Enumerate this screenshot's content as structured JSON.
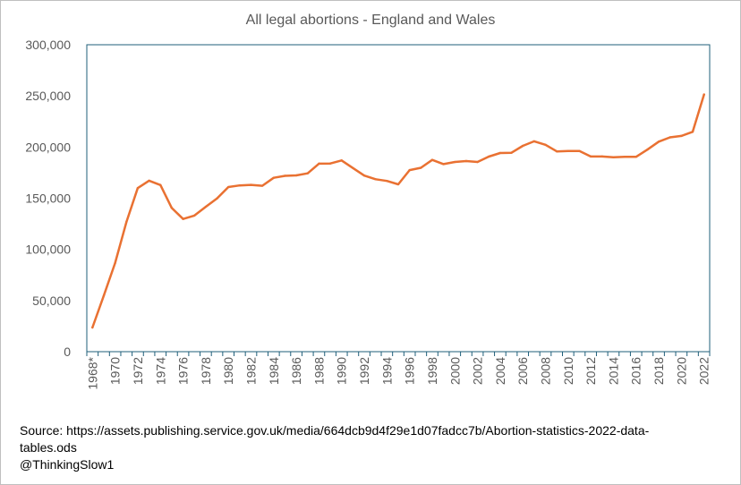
{
  "chart_data": {
    "type": "line",
    "title": "All legal abortions - England and Wales",
    "xlabel": "",
    "ylabel": "",
    "ylim": [
      0,
      300000
    ],
    "yticks": [
      "0",
      "50,000",
      "100,000",
      "150,000",
      "200,000",
      "250,000",
      "300,000"
    ],
    "x": [
      "1968*",
      "1969",
      "1970",
      "1971",
      "1972",
      "1973",
      "1974",
      "1975",
      "1976",
      "1977",
      "1978",
      "1979",
      "1980",
      "1981",
      "1982",
      "1983",
      "1984",
      "1985",
      "1986",
      "1987",
      "1988",
      "1989",
      "1990",
      "1991",
      "1992",
      "1993",
      "1994",
      "1995",
      "1996",
      "1997",
      "1998",
      "1999",
      "2000",
      "2001",
      "2002",
      "2003",
      "2004",
      "2005",
      "2006",
      "2007",
      "2008",
      "2009",
      "2010",
      "2011",
      "2012",
      "2013",
      "2014",
      "2015",
      "2016",
      "2017",
      "2018",
      "2019",
      "2020",
      "2021",
      "2022"
    ],
    "xtick_labels": [
      "1968*",
      "1970",
      "1972",
      "1974",
      "1976",
      "1978",
      "1980",
      "1982",
      "1984",
      "1986",
      "1988",
      "1990",
      "1992",
      "1994",
      "1996",
      "1998",
      "2000",
      "2002",
      "2004",
      "2006",
      "2008",
      "2010",
      "2012",
      "2014",
      "2016",
      "2018",
      "2020",
      "2022"
    ],
    "series": [
      {
        "name": "",
        "color": "#e97132",
        "values": [
          23600,
          54800,
          86600,
          126800,
          159900,
          167100,
          162900,
          140500,
          129700,
          133000,
          141600,
          149700,
          160900,
          162500,
          163000,
          162200,
          169900,
          171900,
          172300,
          174300,
          183800,
          183900,
          186900,
          179500,
          172100,
          168500,
          166900,
          163600,
          177500,
          179700,
          187400,
          183300,
          185400,
          186300,
          185400,
          190700,
          194200,
          194400,
          201200,
          205600,
          202200,
          195700,
          196100,
          196100,
          190800,
          190800,
          190100,
          190400,
          190400,
          197500,
          205300,
          209500,
          210900,
          214900,
          251400
        ]
      }
    ],
    "grid": false,
    "legend": "none",
    "plot_border_color": "#1f5f7a"
  },
  "source": {
    "line1": "Source:  https://assets.publishing.service.gov.uk/media/664dcb9d4f29e1d07fadcc7b/Abortion-statistics-2022-data-tables.ods",
    "line2": "@ThinkingSlow1"
  }
}
